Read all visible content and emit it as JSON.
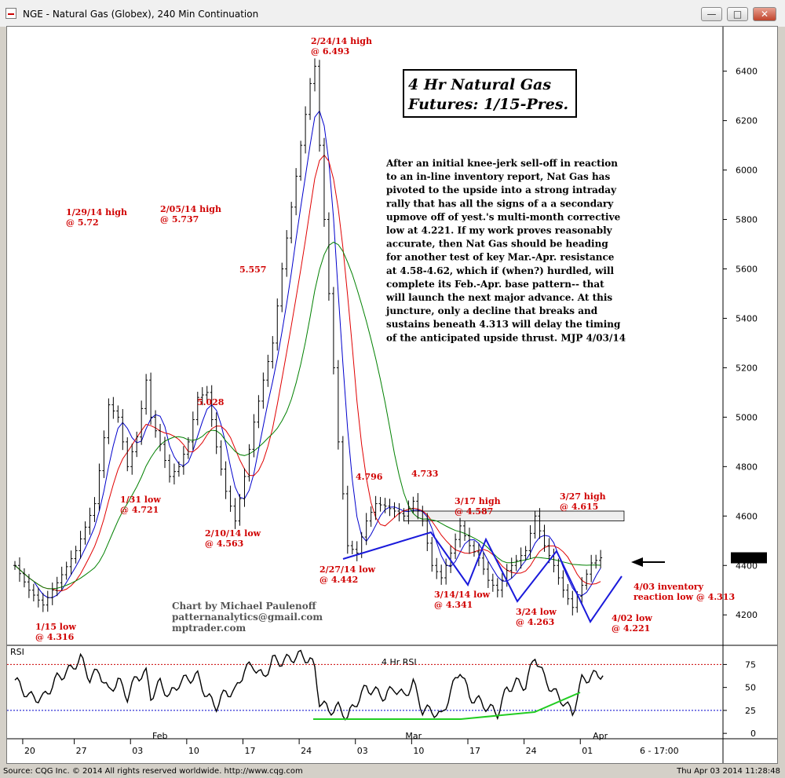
{
  "window": {
    "title": "NGE - Natural Gas (Globex), 240 Min Continuation",
    "buttons": {
      "minimize": "—",
      "maximize": "□",
      "close": "✕"
    }
  },
  "status": {
    "left": "Source: CQG Inc. © 2014 All rights reserved worldwide.  http://www.cqg.com",
    "right": "Thu Apr 03 2014 11:28:48"
  },
  "chart_data": [
    {
      "type": "candlestick",
      "title_lines": [
        "4 Hr Natural Gas",
        "Futures:  1/15-Pres."
      ],
      "y_ticks": [
        4200,
        4400,
        4600,
        4800,
        5000,
        5200,
        5400,
        5600,
        5800,
        6000,
        6200,
        6400
      ],
      "ylim": [
        4080,
        6580
      ],
      "x_tick_labels": [
        "20",
        "27",
        "03",
        "10",
        "17",
        "24",
        "03",
        "10",
        "17",
        "24",
        "01",
        "6 - 17:00"
      ],
      "month_labels": [
        "Feb",
        "Mar",
        "Apr"
      ],
      "last_price": "4431",
      "close_path": [
        [
          0,
          4400
        ],
        [
          3,
          4300
        ],
        [
          6,
          4240
        ],
        [
          9,
          4330
        ],
        [
          13,
          4460
        ],
        [
          17,
          4650
        ],
        [
          20,
          5050
        ],
        [
          22,
          5000
        ],
        [
          24,
          4800
        ],
        [
          26,
          4920
        ],
        [
          28,
          5150
        ],
        [
          29,
          5000
        ],
        [
          31,
          4890
        ],
        [
          33,
          4760
        ],
        [
          35,
          4800
        ],
        [
          37,
          4900
        ],
        [
          39,
          5080
        ],
        [
          41,
          5100
        ],
        [
          43,
          4880
        ],
        [
          45,
          4700
        ],
        [
          47,
          4580
        ],
        [
          49,
          4760
        ],
        [
          51,
          4980
        ],
        [
          53,
          5150
        ],
        [
          55,
          5300
        ],
        [
          57,
          5600
        ],
        [
          59,
          5850
        ],
        [
          61,
          6100
        ],
        [
          63,
          6350
        ],
        [
          64,
          6420
        ],
        [
          65,
          6100
        ],
        [
          67,
          5500
        ],
        [
          69,
          4900
        ],
        [
          71,
          4480
        ],
        [
          73,
          4450
        ],
        [
          75,
          4580
        ],
        [
          77,
          4650
        ],
        [
          79,
          4640
        ],
        [
          81,
          4620
        ],
        [
          83,
          4600
        ],
        [
          85,
          4660
        ],
        [
          87,
          4580
        ],
        [
          89,
          4400
        ],
        [
          91,
          4350
        ],
        [
          93,
          4450
        ],
        [
          95,
          4560
        ],
        [
          97,
          4480
        ],
        [
          99,
          4430
        ],
        [
          101,
          4340
        ],
        [
          103,
          4300
        ],
        [
          105,
          4380
        ],
        [
          107,
          4420
        ],
        [
          109,
          4460
        ],
        [
          111,
          4600
        ],
        [
          113,
          4480
        ],
        [
          115,
          4400
        ],
        [
          117,
          4300
        ],
        [
          119,
          4230
        ],
        [
          121,
          4320
        ],
        [
          123,
          4410
        ],
        [
          125,
          4431
        ]
      ],
      "series": [
        {
          "name": "",
          "color": "#0000cc",
          "lag": 2
        },
        {
          "name": "",
          "color": "#e00000",
          "lag": 4
        },
        {
          "name": "",
          "color": "#008000",
          "lag": 8
        }
      ],
      "resistance_zone": [
        4580,
        4620
      ],
      "annotations": [
        {
          "id": "a1",
          "lines": [
            "2/24/14 high",
            "@ 6.493"
          ]
        },
        {
          "id": "a2",
          "lines": [
            "1/29/14 high",
            "@ 5.72"
          ]
        },
        {
          "id": "a3",
          "lines": [
            "2/05/14 high",
            "@ 5.737"
          ]
        },
        {
          "id": "a4",
          "lines": [
            "5.557"
          ]
        },
        {
          "id": "a5",
          "lines": [
            "5.028"
          ]
        },
        {
          "id": "a6",
          "lines": [
            "1/31 low",
            "@ 4.721"
          ]
        },
        {
          "id": "a7",
          "lines": [
            "2/10/14 low",
            "@ 4.563"
          ]
        },
        {
          "id": "a8",
          "lines": [
            "1/15 low",
            "@ 4.316"
          ]
        },
        {
          "id": "a9",
          "lines": [
            "4.796"
          ]
        },
        {
          "id": "a10",
          "lines": [
            "4.733"
          ]
        },
        {
          "id": "a11",
          "lines": [
            "3/17 high",
            "@ 4.587"
          ]
        },
        {
          "id": "a12",
          "lines": [
            "3/27 high",
            "@ 4.615"
          ]
        },
        {
          "id": "a13",
          "lines": [
            "2/27/14 low",
            "@ 4.442"
          ]
        },
        {
          "id": "a14",
          "lines": [
            "3/14/14 low",
            "@ 4.341"
          ]
        },
        {
          "id": "a15",
          "lines": [
            "3/24 low",
            "@ 4.263"
          ]
        },
        {
          "id": "a16",
          "lines": [
            "4/02 low",
            "@ 4.221"
          ]
        },
        {
          "id": "a17",
          "lines": [
            "4/03 inventory",
            "reaction low @ 4.313"
          ]
        }
      ],
      "commentary": [
        "After an initial knee-jerk sell-off in reaction",
        "to an in-line inventory report, Nat Gas has",
        "pivoted to the upside into a strong intraday",
        "rally that has all the signs of a a secondary",
        "upmove off of yest.'s multi-month corrective",
        "low at 4.221. If my work proves reasonably",
        "accurate, then Nat Gas should be heading",
        "for another test of key Mar.-Apr. resistance",
        "at 4.58-4.62, which if (when?) hurdled, will",
        "complete its Feb.-Apr. base pattern-- that",
        "will launch the next major advance. At this",
        "juncture, only a decline that breaks and",
        "sustains beneath 4.313 will delay the timing",
        "of the anticipated upside thrust. MJP  4/03/14"
      ],
      "credit": [
        "Chart by Michael Paulenoff",
        "patternanalytics@gmail.com",
        "mptrader.com"
      ]
    },
    {
      "type": "line",
      "panel_label": "RSI",
      "title": "4 Hr RSI",
      "y_ticks": [
        0,
        25,
        50,
        75
      ],
      "ylim": [
        -5,
        95
      ],
      "reference_lines": [
        25,
        75
      ],
      "rsi_path": [
        [
          0,
          58
        ],
        [
          3,
          40
        ],
        [
          6,
          38
        ],
        [
          9,
          60
        ],
        [
          12,
          70
        ],
        [
          14,
          82
        ],
        [
          16,
          60
        ],
        [
          18,
          68
        ],
        [
          20,
          45
        ],
        [
          22,
          58
        ],
        [
          24,
          40
        ],
        [
          26,
          62
        ],
        [
          28,
          65
        ],
        [
          29,
          40
        ],
        [
          31,
          55
        ],
        [
          33,
          40
        ],
        [
          35,
          55
        ],
        [
          37,
          60
        ],
        [
          39,
          62
        ],
        [
          41,
          40
        ],
        [
          43,
          30
        ],
        [
          45,
          45
        ],
        [
          47,
          45
        ],
        [
          49,
          70
        ],
        [
          51,
          74
        ],
        [
          53,
          60
        ],
        [
          55,
          80
        ],
        [
          57,
          78
        ],
        [
          59,
          82
        ],
        [
          61,
          85
        ],
        [
          63,
          80
        ],
        [
          64,
          70
        ],
        [
          65,
          35
        ],
        [
          67,
          25
        ],
        [
          69,
          28
        ],
        [
          71,
          18
        ],
        [
          73,
          35
        ],
        [
          75,
          50
        ],
        [
          77,
          45
        ],
        [
          79,
          40
        ],
        [
          81,
          50
        ],
        [
          83,
          40
        ],
        [
          85,
          55
        ],
        [
          87,
          25
        ],
        [
          89,
          25
        ],
        [
          91,
          18
        ],
        [
          93,
          45
        ],
        [
          95,
          70
        ],
        [
          97,
          40
        ],
        [
          99,
          35
        ],
        [
          101,
          28
        ],
        [
          103,
          22
        ],
        [
          105,
          48
        ],
        [
          107,
          55
        ],
        [
          109,
          52
        ],
        [
          111,
          85
        ],
        [
          113,
          60
        ],
        [
          115,
          45
        ],
        [
          117,
          35
        ],
        [
          119,
          22
        ],
        [
          121,
          58
        ],
        [
          123,
          62
        ],
        [
          125,
          65
        ]
      ]
    }
  ]
}
